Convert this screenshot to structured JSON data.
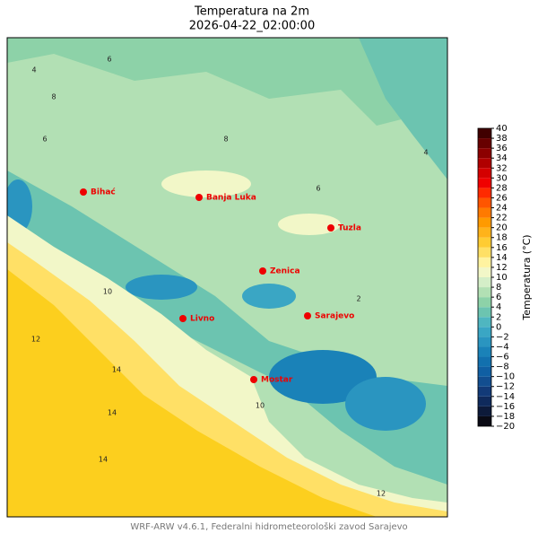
{
  "title": "Temperatura na 2m",
  "subtitle": "2026-04-22_02:00:00",
  "map": {
    "cities": [
      "Bihać",
      "Banja Luka",
      "Tuzla",
      "Zenica",
      "Sarajevo",
      "Livno",
      "Mostar"
    ],
    "contour_labels": [
      "6",
      "4",
      "8",
      "6",
      "8",
      "6",
      "10",
      "12",
      "14",
      "14",
      "14",
      "10",
      "12",
      "4",
      "2"
    ]
  },
  "colorbar": {
    "label": "Temperatura (°C)",
    "ticks": [
      {
        "value": -20,
        "label": "−20"
      },
      {
        "value": -18,
        "label": "−18"
      },
      {
        "value": -16,
        "label": "−16"
      },
      {
        "value": -14,
        "label": "−14"
      },
      {
        "value": -12,
        "label": "−12"
      },
      {
        "value": -10,
        "label": "−10"
      },
      {
        "value": -8,
        "label": "−8"
      },
      {
        "value": -6,
        "label": "−6"
      },
      {
        "value": -4,
        "label": "−4"
      },
      {
        "value": -2,
        "label": "−2"
      },
      0,
      2,
      4,
      6,
      8,
      10,
      12,
      14,
      16,
      18,
      20,
      22,
      24,
      26,
      28,
      30,
      32,
      34,
      36,
      38,
      40
    ],
    "colors": [
      "#0a0a14",
      "#0d1a3a",
      "#0f2a5c",
      "#123a78",
      "#124e90",
      "#105fa3",
      "#1270ae",
      "#1a82b8",
      "#2a95c0",
      "#3aa6c4",
      "#4fb6c0",
      "#6cc4b0",
      "#8dd2a8",
      "#b2e0b4",
      "#d4eec8",
      "#f2f7c8",
      "#fff3a0",
      "#ffe066",
      "#ffcc33",
      "#ffb31a",
      "#ff9a00",
      "#ff7a00",
      "#ff5500",
      "#ff2a00",
      "#f00000",
      "#d40000",
      "#b00000",
      "#8c0000",
      "#680000",
      "#400000"
    ]
  },
  "footer": "WRF-ARW v4.6.1, Federalni hidrometeorološki zavod Sarajevo"
}
